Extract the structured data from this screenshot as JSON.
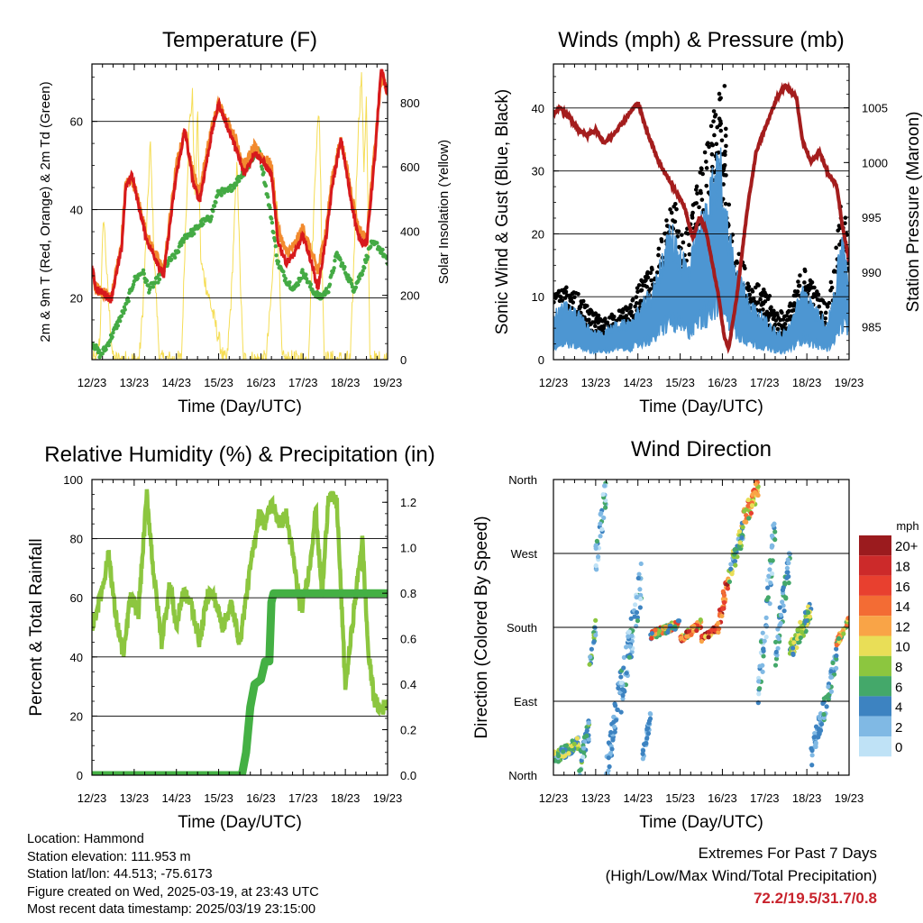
{
  "colors": {
    "temp2m": "#d7191c",
    "temp9m": "#f28a2e",
    "dewpoint": "#44aa44",
    "solar": "#f5dd55",
    "wind": "#000000",
    "gust": "#4d96d2",
    "pressure": "#a41d1d",
    "rh": "#8cc63f",
    "precip": "#44b044",
    "highlight": "#c8232c"
  },
  "chart_data": [
    {
      "id": "temperature",
      "type": "line",
      "title": "Temperature (F)",
      "xlabel": "Time (Day/UTC)",
      "ylabel": "2m & 9m T (Red, Orange) & 2m Td (Green)",
      "y2label": "Solar Insolation (Yellow)",
      "xticks": [
        "12/23",
        "13/23",
        "14/23",
        "15/23",
        "16/23",
        "17/23",
        "18/23",
        "19/23"
      ],
      "xlim": [
        0,
        7
      ],
      "ylim": [
        6,
        73
      ],
      "yticks": [
        20,
        40,
        60
      ],
      "y2lim": [
        0,
        920
      ],
      "y2ticks": [
        0,
        200,
        400,
        600,
        800
      ],
      "grid": "horizontal",
      "series": [
        {
          "key": "temp9m",
          "axis": "left",
          "x": [
            0,
            0.1,
            0.3,
            0.45,
            0.7,
            0.8,
            0.95,
            1.1,
            1.3,
            1.5,
            1.7,
            1.8,
            2.0,
            2.2,
            2.4,
            2.55,
            2.7,
            2.85,
            3.0,
            3.2,
            3.4,
            3.6,
            3.85,
            4.05,
            4.25,
            4.4,
            4.6,
            4.8,
            5.0,
            5.2,
            5.35,
            5.55,
            5.7,
            5.9,
            6.1,
            6.3,
            6.5,
            6.7,
            6.85,
            6.95,
            7.0
          ],
          "y": [
            26,
            22,
            21,
            20,
            32,
            46,
            47,
            42,
            34,
            30,
            26,
            34,
            50,
            58,
            48,
            44,
            52,
            59,
            64,
            60,
            56,
            50,
            54,
            52,
            50,
            36,
            30,
            32,
            36,
            30,
            26,
            36,
            48,
            56,
            46,
            36,
            33,
            54,
            70,
            68,
            67
          ]
        },
        {
          "key": "temp2m",
          "axis": "left",
          "x": [
            0,
            0.1,
            0.3,
            0.45,
            0.7,
            0.8,
            0.95,
            1.1,
            1.3,
            1.5,
            1.7,
            1.8,
            2.0,
            2.2,
            2.4,
            2.55,
            2.7,
            2.85,
            3.0,
            3.2,
            3.4,
            3.6,
            3.85,
            4.05,
            4.25,
            4.4,
            4.6,
            4.8,
            5.0,
            5.2,
            5.35,
            5.55,
            5.7,
            5.9,
            6.1,
            6.3,
            6.5,
            6.7,
            6.85,
            6.95,
            7.0
          ],
          "y": [
            27,
            22,
            21,
            19.5,
            31,
            45,
            48,
            41,
            33,
            29,
            25,
            33,
            48,
            58,
            46,
            42,
            50,
            58,
            64,
            59,
            54,
            48,
            53,
            51,
            48,
            33,
            28,
            30,
            34,
            28,
            22,
            34,
            46,
            56,
            44,
            34,
            32,
            52,
            72.2,
            68,
            66
          ]
        },
        {
          "key": "dewpoint",
          "axis": "left",
          "x": [
            0,
            0.2,
            0.35,
            0.6,
            0.8,
            1.0,
            1.2,
            1.35,
            1.55,
            1.8,
            2.0,
            2.2,
            2.4,
            2.6,
            2.8,
            3.0,
            3.2,
            3.4,
            3.7,
            3.95,
            4.1,
            4.25,
            4.4,
            4.6,
            4.8,
            5.0,
            5.2,
            5.4,
            5.6,
            5.8,
            6.0,
            6.2,
            6.4,
            6.6,
            6.75,
            6.9,
            7.0
          ],
          "y": [
            10,
            7,
            9,
            14,
            18,
            24,
            26,
            22,
            24,
            28,
            30,
            34,
            35,
            37,
            38,
            44,
            44,
            46,
            50,
            54,
            46,
            38,
            28,
            24,
            22,
            26,
            22,
            20,
            22,
            30,
            26,
            22,
            26,
            32,
            32,
            30,
            28
          ]
        },
        {
          "key": "solar",
          "axis": "right",
          "x": [
            0,
            0.12,
            0.2,
            0.22,
            0.28,
            0.38,
            0.5,
            1.12,
            1.2,
            1.3,
            1.38,
            1.48,
            1.6,
            2.12,
            2.2,
            2.3,
            2.38,
            2.44,
            2.5,
            2.58,
            3.12,
            3.2,
            3.3,
            3.38,
            3.44,
            3.5,
            3.58,
            4.12,
            4.2,
            4.3,
            4.38,
            4.5,
            5.12,
            5.2,
            5.3,
            5.38,
            5.5,
            6.12,
            6.2,
            6.3,
            6.38,
            6.44,
            6.5,
            6.58,
            7.0
          ],
          "y": [
            0,
            0,
            80,
            250,
            450,
            200,
            0,
            0,
            150,
            420,
            680,
            300,
            0,
            0,
            350,
            720,
            820,
            500,
            780,
            300,
            0,
            0,
            200,
            450,
            620,
            300,
            0,
            0,
            120,
            300,
            500,
            0,
            0,
            260,
            640,
            780,
            0,
            0,
            300,
            700,
            890,
            600,
            820,
            0,
            0
          ]
        }
      ]
    },
    {
      "id": "winds",
      "type": "line",
      "title": "Winds (mph) & Pressure (mb)",
      "xlabel": "Time (Day/UTC)",
      "ylabel": "Sonic Wind & Gust (Blue, Black)",
      "y2label": "Station Pressure (Maroon)",
      "xticks": [
        "12/23",
        "13/23",
        "14/23",
        "15/23",
        "16/23",
        "17/23",
        "18/23",
        "19/23"
      ],
      "xlim": [
        0,
        7
      ],
      "ylim": [
        0,
        47
      ],
      "yticks": [
        0,
        10,
        20,
        30,
        40
      ],
      "y2lim": [
        982,
        1009
      ],
      "y2ticks": [
        985,
        990,
        995,
        1000,
        1005
      ],
      "grid": "horizontal",
      "series": [
        {
          "key": "wind",
          "axis": "left",
          "x": [
            0,
            0.3,
            0.6,
            0.9,
            1.2,
            1.5,
            1.8,
            2.1,
            2.4,
            2.6,
            2.8,
            3.0,
            3.2,
            3.4,
            3.6,
            3.8,
            3.95,
            4.1,
            4.3,
            4.5,
            4.7,
            4.9,
            5.1,
            5.3,
            5.5,
            5.7,
            5.9,
            6.1,
            6.3,
            6.5,
            6.7,
            6.85,
            6.95,
            7.0
          ],
          "y": [
            8,
            9,
            8,
            6,
            5,
            6,
            7,
            10,
            12,
            16,
            20,
            18,
            16,
            22,
            26,
            30,
            32,
            22,
            14,
            12,
            10,
            9,
            8,
            6,
            6,
            8,
            12,
            10,
            8,
            7,
            14,
            22,
            16,
            12
          ]
        },
        {
          "key": "gust",
          "axis": "left",
          "x": [
            0,
            0.3,
            0.6,
            0.9,
            1.2,
            1.5,
            1.8,
            2.1,
            2.4,
            2.6,
            2.8,
            3.0,
            3.2,
            3.4,
            3.6,
            3.8,
            3.95,
            4.1,
            4.3,
            4.5,
            4.7,
            4.9,
            5.1,
            5.3,
            5.5,
            5.7,
            5.9,
            6.1,
            6.3,
            6.5,
            6.7,
            6.85,
            6.95,
            7.0
          ],
          "y": [
            5,
            6,
            5,
            3,
            3,
            4,
            4,
            6,
            8,
            12,
            14,
            12,
            10,
            14,
            16,
            20,
            22,
            16,
            10,
            8,
            6,
            5,
            4,
            3,
            3,
            5,
            8,
            6,
            5,
            4,
            9,
            14,
            11,
            8
          ]
        },
        {
          "key": "pressure",
          "axis": "right",
          "x": [
            0,
            0.15,
            0.4,
            0.6,
            0.8,
            1.0,
            1.2,
            1.4,
            1.6,
            1.8,
            2.0,
            2.2,
            2.5,
            2.8,
            3.1,
            3.3,
            3.45,
            3.6,
            3.75,
            3.9,
            4.05,
            4.15,
            4.35,
            4.6,
            4.8,
            5.0,
            5.3,
            5.5,
            5.6,
            5.75,
            5.9,
            6.1,
            6.3,
            6.5,
            6.7,
            6.85,
            7.0
          ],
          "y": [
            1004.5,
            1005,
            1004,
            1003,
            1002.5,
            1003,
            1001.8,
            1002.5,
            1003.5,
            1004.5,
            1005.5,
            1003,
            1000,
            998,
            996,
            993,
            995,
            994,
            991,
            988,
            984,
            983,
            988,
            996,
            1001,
            1003,
            1006,
            1007,
            1006.5,
            1006,
            1002,
            1000,
            1001,
            999,
            998,
            994,
            991
          ]
        }
      ]
    },
    {
      "id": "humidity",
      "type": "line",
      "title": "Relative Humidity (%) & Precipitation (in)",
      "xlabel": "Time (Day/UTC)",
      "ylabel": "Percent & Total Rainfall",
      "xticks": [
        "12/23",
        "13/23",
        "14/23",
        "15/23",
        "16/23",
        "17/23",
        "18/23",
        "19/23"
      ],
      "xlim": [
        0,
        7
      ],
      "ylim": [
        0,
        100
      ],
      "yticks": [
        0,
        20,
        40,
        60,
        80,
        100
      ],
      "y2lim": [
        0,
        1.3
      ],
      "y2ticks": [
        0.0,
        0.2,
        0.4,
        0.6,
        0.8,
        1.0,
        1.2
      ],
      "grid": "horizontal",
      "series": [
        {
          "key": "rh",
          "axis": "left",
          "x": [
            0,
            0.2,
            0.4,
            0.55,
            0.75,
            0.9,
            1.1,
            1.3,
            1.45,
            1.65,
            1.85,
            2.0,
            2.15,
            2.35,
            2.55,
            2.75,
            2.9,
            3.1,
            3.3,
            3.5,
            3.75,
            3.95,
            4.1,
            4.25,
            4.45,
            4.6,
            4.75,
            4.95,
            5.15,
            5.3,
            5.45,
            5.6,
            5.8,
            6.0,
            6.2,
            6.4,
            6.55,
            6.7,
            6.85,
            7.0
          ],
          "y": [
            50,
            60,
            75,
            55,
            40,
            60,
            55,
            95,
            70,
            45,
            65,
            50,
            62,
            58,
            45,
            62,
            60,
            50,
            58,
            45,
            70,
            88,
            85,
            92,
            85,
            88,
            75,
            55,
            70,
            90,
            60,
            95,
            92,
            30,
            55,
            80,
            40,
            25,
            22,
            25
          ]
        },
        {
          "key": "precip",
          "axis": "right",
          "x": [
            0,
            1,
            2,
            3,
            3.55,
            3.65,
            3.75,
            3.85,
            4.0,
            4.1,
            4.2,
            4.25,
            4.3,
            4.35,
            5,
            6,
            7
          ],
          "y": [
            0,
            0,
            0,
            0,
            0,
            0.1,
            0.3,
            0.4,
            0.42,
            0.5,
            0.5,
            0.76,
            0.8,
            0.8,
            0.8,
            0.8,
            0.8
          ]
        }
      ]
    },
    {
      "id": "direction",
      "type": "scatter",
      "title": "Wind Direction",
      "xlabel": "Time (Day/UTC)",
      "ylabel": "Direction (Colored By Speed)",
      "xticks": [
        "12/23",
        "13/23",
        "14/23",
        "15/23",
        "16/23",
        "17/23",
        "18/23",
        "19/23"
      ],
      "xlim": [
        0,
        7
      ],
      "ylim": [
        0,
        360
      ],
      "ytick_labels": [
        "North",
        "East",
        "South",
        "West",
        "North"
      ],
      "legend": {
        "title": "mph",
        "placement": "right",
        "labels": [
          "20+",
          "18",
          "16",
          "14",
          "12",
          "10",
          "8",
          "6",
          "4",
          "2",
          "0"
        ],
        "colors": [
          "#9b1b1e",
          "#cc2a2a",
          "#e8402f",
          "#f36c34",
          "#f9a447",
          "#e9de57",
          "#8cc63f",
          "#44a86a",
          "#3d83c1",
          "#80b9e4",
          "#bfe2f6"
        ]
      },
      "series": [
        {
          "name": "segments",
          "segments": [
            [
              0.0,
              0.6,
              20,
              40,
              15,
              6,
              5
            ],
            [
              0.6,
              0.85,
              10,
              55,
              30,
              4,
              4
            ],
            [
              0.85,
              1.0,
              130,
              180,
              20,
              5,
              4
            ],
            [
              1.0,
              1.25,
              260,
              350,
              40,
              3,
              3
            ],
            [
              1.25,
              1.6,
              0,
              120,
              40,
              3,
              2
            ],
            [
              1.6,
              2.1,
              100,
              240,
              50,
              3,
              3
            ],
            [
              2.1,
              2.3,
              20,
              70,
              20,
              3,
              2
            ],
            [
              2.3,
              3.0,
              170,
              185,
              10,
              10,
              7
            ],
            [
              3.0,
              3.5,
              165,
              185,
              10,
              13,
              7
            ],
            [
              3.5,
              3.9,
              165,
              180,
              8,
              16,
              6
            ],
            [
              3.9,
              4.15,
              185,
              240,
              25,
              16,
              5
            ],
            [
              4.15,
              4.5,
              240,
              300,
              30,
              7,
              5
            ],
            [
              4.5,
              4.85,
              310,
              350,
              25,
              11,
              5
            ],
            [
              4.85,
              5.25,
              100,
              300,
              60,
              3,
              3
            ],
            [
              5.25,
              5.6,
              150,
              260,
              40,
              4,
              3
            ],
            [
              5.6,
              6.1,
              150,
              200,
              25,
              7,
              4
            ],
            [
              6.1,
              6.4,
              20,
              80,
              30,
              3,
              2
            ],
            [
              6.4,
              6.7,
              80,
              140,
              30,
              4,
              3
            ],
            [
              6.7,
              7.0,
              160,
              190,
              10,
              10,
              5
            ]
          ]
        }
      ]
    }
  ],
  "info": {
    "location": "Location: Hammond",
    "elevation": "Station elevation: 111.953 m",
    "latlon": "Station lat/lon: 44.513; -75.6173",
    "created": "Figure created on Wed, 2025-03-19, at 23:43 UTC",
    "recent": "Most recent data timestamp: 2025/03/19 23:15:00"
  },
  "extremes": {
    "title": "Extremes For Past 7 Days",
    "subtitle": "(High/Low/Max Wind/Total Precipitation)",
    "values": "72.2/19.5/31.7/0.8"
  }
}
